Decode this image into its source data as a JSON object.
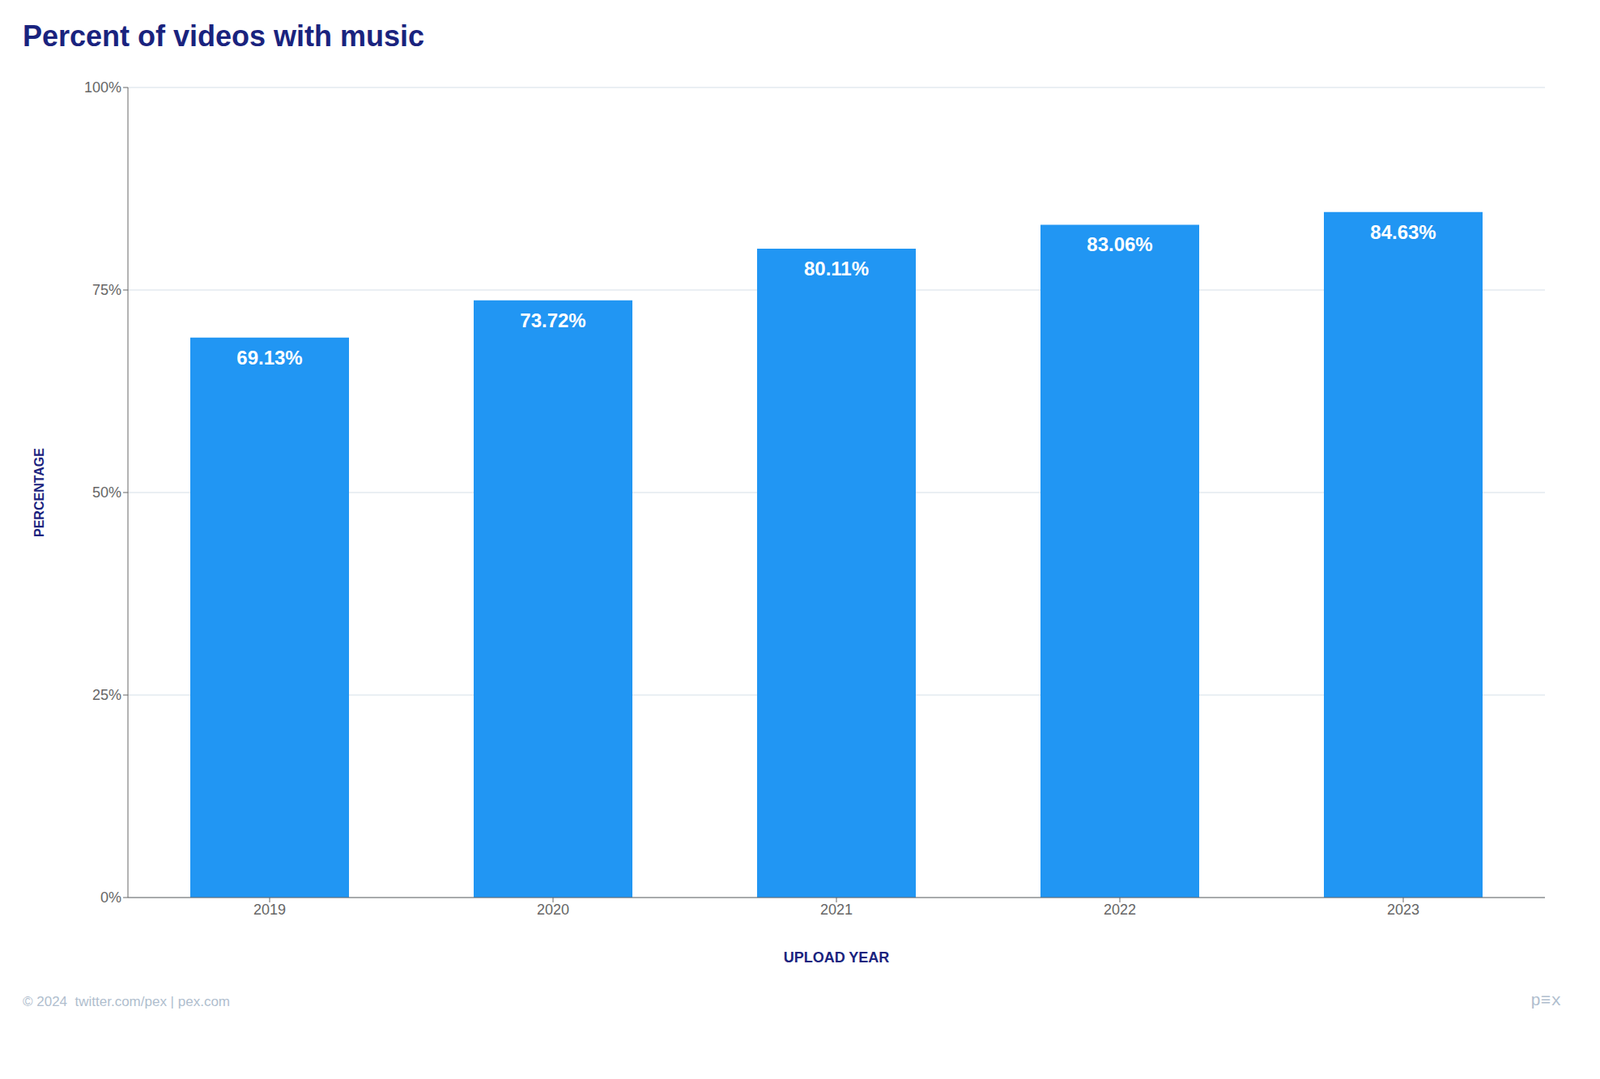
{
  "chart_data": {
    "type": "bar",
    "title": "Percent of videos with music",
    "xlabel": "UPLOAD YEAR",
    "ylabel": "PERCENTAGE",
    "categories": [
      "2019",
      "2020",
      "2021",
      "2022",
      "2023"
    ],
    "values": [
      69.13,
      73.72,
      80.11,
      83.06,
      84.63
    ],
    "value_labels": [
      "69.13%",
      "73.72%",
      "80.11%",
      "83.06%",
      "84.63%"
    ],
    "data_labels": true,
    "color": "#2196f3",
    "ylim": [
      0,
      100
    ],
    "yticks": [
      {
        "value": 0,
        "label": "0%"
      },
      {
        "value": 25,
        "label": "25%"
      },
      {
        "value": 50,
        "label": "50%"
      },
      {
        "value": 75,
        "label": "75%"
      },
      {
        "value": 100,
        "label": "100%"
      }
    ],
    "grid": true,
    "annotations": [
      "© 2024  twitter.com/pex | pex.com",
      "p≡x"
    ]
  }
}
